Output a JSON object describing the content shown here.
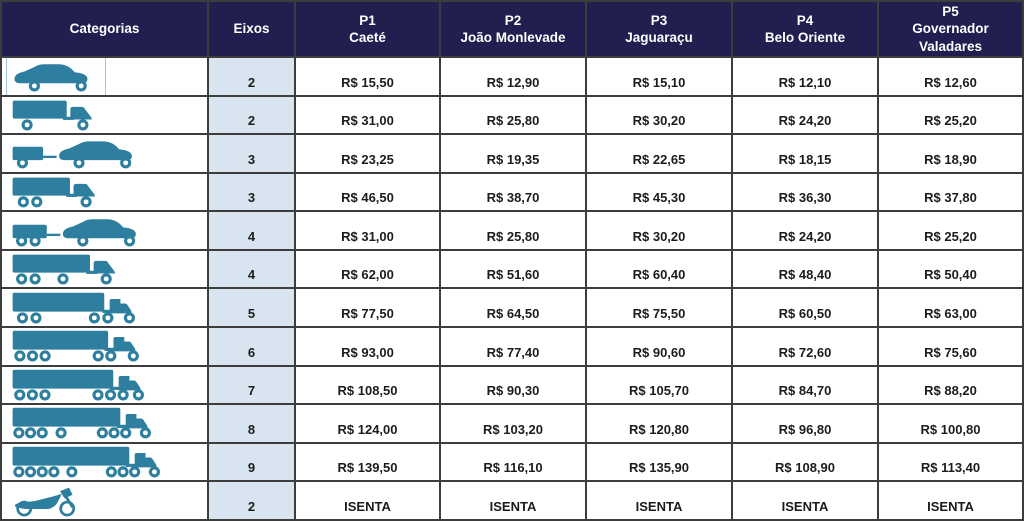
{
  "colors": {
    "header_bg": "#211e50",
    "header_text": "#ffffff",
    "axles_col_bg": "#d8e5f1",
    "grid_border": "#3d3d3d",
    "vehicle_icon": "#2e7f9f",
    "value_text": "#1c1c1c"
  },
  "header": {
    "categories_label": "Categorias",
    "axles_label": "Eixos",
    "plazas": [
      {
        "code": "P1",
        "name": "Caeté"
      },
      {
        "code": "P2",
        "name": "João Monlevade"
      },
      {
        "code": "P3",
        "name": "Jaguaraçu"
      },
      {
        "code": "P4",
        "name": "Belo Oriente"
      },
      {
        "code": "P5",
        "name": "Governador Valadares"
      }
    ]
  },
  "table": {
    "rows": [
      {
        "icon": "car",
        "selected": true,
        "axles": "2",
        "prices": [
          "R$ 15,50",
          "R$ 12,90",
          "R$ 15,10",
          "R$ 12,10",
          "R$ 12,60"
        ]
      },
      {
        "icon": "truck-2axle",
        "selected": false,
        "axles": "2",
        "prices": [
          "R$ 31,00",
          "R$ 25,80",
          "R$ 30,20",
          "R$ 24,20",
          "R$ 25,20"
        ]
      },
      {
        "icon": "car-with-trailer",
        "selected": false,
        "axles": "3",
        "prices": [
          "R$ 23,25",
          "R$ 19,35",
          "R$ 22,65",
          "R$ 18,15",
          "R$ 18,90"
        ]
      },
      {
        "icon": "truck-3axle",
        "selected": false,
        "axles": "3",
        "prices": [
          "R$ 46,50",
          "R$ 38,70",
          "R$ 45,30",
          "R$ 36,30",
          "R$ 37,80"
        ]
      },
      {
        "icon": "car-with-2axle-trailer",
        "selected": false,
        "axles": "4",
        "prices": [
          "R$ 31,00",
          "R$ 25,80",
          "R$ 30,20",
          "R$ 24,20",
          "R$ 25,20"
        ]
      },
      {
        "icon": "truck-4axle",
        "selected": false,
        "axles": "4",
        "prices": [
          "R$ 62,00",
          "R$ 51,60",
          "R$ 60,40",
          "R$ 48,40",
          "R$ 50,40"
        ]
      },
      {
        "icon": "semi-5axle",
        "selected": false,
        "axles": "5",
        "prices": [
          "R$ 77,50",
          "R$ 64,50",
          "R$ 75,50",
          "R$ 60,50",
          "R$ 63,00"
        ]
      },
      {
        "icon": "semi-6axle",
        "selected": false,
        "axles": "6",
        "prices": [
          "R$ 93,00",
          "R$ 77,40",
          "R$ 90,60",
          "R$ 72,60",
          "R$ 75,60"
        ]
      },
      {
        "icon": "semi-7axle",
        "selected": false,
        "axles": "7",
        "prices": [
          "R$ 108,50",
          "R$ 90,30",
          "R$ 105,70",
          "R$ 84,70",
          "R$ 88,20"
        ]
      },
      {
        "icon": "semi-8axle",
        "selected": false,
        "axles": "8",
        "prices": [
          "R$ 124,00",
          "R$ 103,20",
          "R$ 120,80",
          "R$ 96,80",
          "R$ 100,80"
        ]
      },
      {
        "icon": "semi-9axle",
        "selected": false,
        "axles": "9",
        "prices": [
          "R$ 139,50",
          "R$ 116,10",
          "R$ 135,90",
          "R$ 108,90",
          "R$ 113,40"
        ]
      },
      {
        "icon": "motorcycle",
        "selected": false,
        "axles": "2",
        "prices": [
          "ISENTA",
          "ISENTA",
          "ISENTA",
          "ISENTA",
          "ISENTA"
        ]
      }
    ]
  }
}
